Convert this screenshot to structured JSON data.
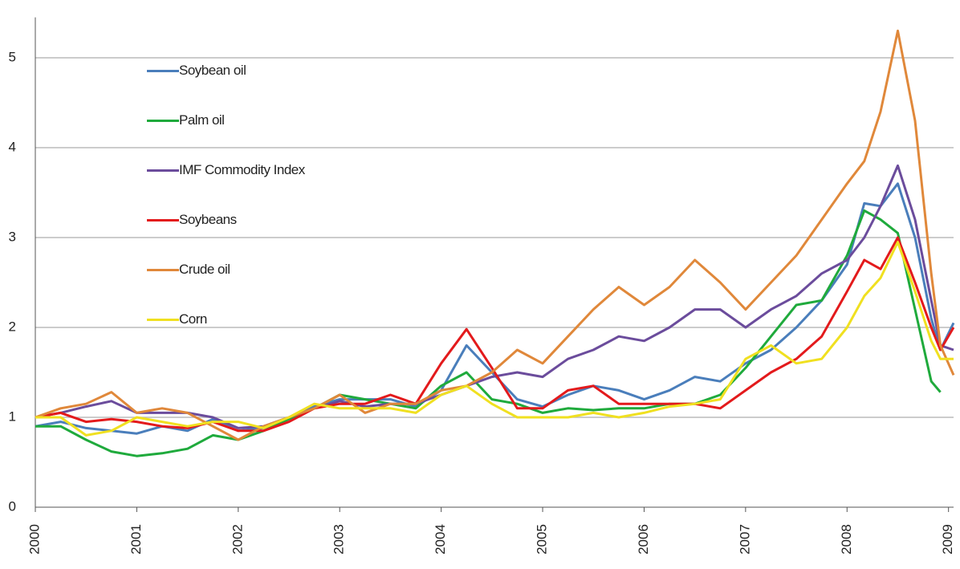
{
  "chart_data": {
    "type": "line",
    "x": [
      2000,
      2000.25,
      2000.5,
      2000.75,
      2001,
      2001.25,
      2001.5,
      2001.75,
      2002,
      2002.25,
      2002.5,
      2002.75,
      2003,
      2003.25,
      2003.5,
      2003.75,
      2004,
      2004.25,
      2004.5,
      2004.75,
      2005,
      2005.25,
      2005.5,
      2005.75,
      2006,
      2006.25,
      2006.5,
      2006.75,
      2007,
      2007.25,
      2007.5,
      2007.75,
      2008,
      2008.17,
      2008.33,
      2008.5,
      2008.67,
      2008.83,
      2008.92,
      2009.05
    ],
    "series": [
      {
        "name": "Soybean oil",
        "color": "#4a7ebb",
        "values": [
          0.9,
          0.95,
          0.88,
          0.85,
          0.82,
          0.9,
          0.85,
          0.98,
          0.85,
          0.88,
          1.0,
          1.12,
          1.2,
          1.2,
          1.2,
          1.12,
          1.3,
          1.8,
          1.5,
          1.2,
          1.12,
          1.25,
          1.35,
          1.3,
          1.2,
          1.3,
          1.45,
          1.4,
          1.6,
          1.75,
          2.0,
          2.3,
          2.7,
          3.38,
          3.35,
          3.6,
          3.0,
          2.1,
          1.75,
          2.05
        ]
      },
      {
        "name": "Palm oil",
        "color": "#1faa3c",
        "values": [
          0.9,
          0.9,
          0.75,
          0.62,
          0.57,
          0.6,
          0.65,
          0.8,
          0.75,
          0.85,
          0.98,
          1.1,
          1.25,
          1.2,
          1.15,
          1.1,
          1.35,
          1.5,
          1.2,
          1.15,
          1.05,
          1.1,
          1.08,
          1.1,
          1.1,
          1.15,
          1.15,
          1.25,
          1.55,
          1.9,
          2.25,
          2.3,
          2.8,
          3.3,
          3.2,
          3.05,
          2.2,
          1.4,
          1.28,
          null
        ]
      },
      {
        "name": "IMF Commodity Index",
        "color": "#6b4c9c",
        "values": [
          1.0,
          1.05,
          1.12,
          1.18,
          1.05,
          1.05,
          1.05,
          1.0,
          0.88,
          0.9,
          1.0,
          1.1,
          1.18,
          1.12,
          1.15,
          1.15,
          1.25,
          1.35,
          1.45,
          1.5,
          1.45,
          1.65,
          1.75,
          1.9,
          1.85,
          2.0,
          2.2,
          2.2,
          2.0,
          2.2,
          2.35,
          2.6,
          2.75,
          3.0,
          3.35,
          3.8,
          3.2,
          2.3,
          1.8,
          1.75
        ]
      },
      {
        "name": "Soybeans",
        "color": "#e31a1c",
        "values": [
          1.0,
          1.05,
          0.95,
          0.98,
          0.95,
          0.9,
          0.88,
          0.95,
          0.85,
          0.85,
          0.95,
          1.1,
          1.15,
          1.15,
          1.25,
          1.15,
          1.6,
          1.98,
          1.55,
          1.1,
          1.1,
          1.3,
          1.35,
          1.15,
          1.15,
          1.15,
          1.15,
          1.1,
          1.3,
          1.5,
          1.65,
          1.9,
          2.4,
          2.75,
          2.65,
          3.0,
          2.5,
          2.0,
          1.75,
          2.0
        ]
      },
      {
        "name": "Crude oil",
        "color": "#e0883a",
        "values": [
          1.0,
          1.1,
          1.15,
          1.28,
          1.05,
          1.1,
          1.05,
          0.9,
          0.75,
          0.9,
          1.0,
          1.1,
          1.25,
          1.05,
          1.15,
          1.15,
          1.3,
          1.35,
          1.5,
          1.75,
          1.6,
          1.9,
          2.2,
          2.45,
          2.25,
          2.45,
          2.75,
          2.5,
          2.2,
          2.5,
          2.8,
          3.2,
          3.6,
          3.85,
          4.4,
          5.3,
          4.3,
          2.6,
          1.8,
          1.47
        ]
      },
      {
        "name": "Corn",
        "color": "#f0e020",
        "values": [
          1.0,
          1.0,
          0.8,
          0.85,
          1.0,
          0.95,
          0.9,
          0.95,
          0.95,
          0.88,
          1.0,
          1.15,
          1.1,
          1.1,
          1.1,
          1.05,
          1.25,
          1.35,
          1.15,
          1.0,
          1.0,
          1.0,
          1.05,
          1.0,
          1.05,
          1.12,
          1.15,
          1.2,
          1.65,
          1.8,
          1.6,
          1.65,
          2.0,
          2.35,
          2.55,
          2.95,
          2.4,
          1.85,
          1.65,
          1.65
        ]
      }
    ],
    "xlim": [
      2000,
      2009.05
    ],
    "xticks": [
      2000,
      2001,
      2002,
      2003,
      2004,
      2005,
      2006,
      2007,
      2008,
      2009
    ],
    "ylim": [
      0,
      5.45
    ],
    "yticks": [
      0,
      1,
      2,
      3,
      4,
      5
    ],
    "grid": true,
    "legend": "upper left"
  }
}
